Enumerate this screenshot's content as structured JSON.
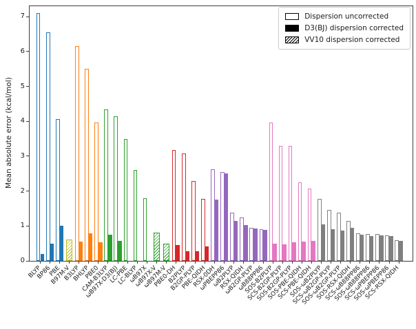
{
  "chart_data": {
    "type": "bar",
    "title": "",
    "xlabel": "",
    "ylabel": "Mean absolute error (kcal/mol)",
    "ylim": [
      0,
      7.3
    ],
    "yticks": [
      0,
      1,
      2,
      3,
      4,
      5,
      6,
      7
    ],
    "grid": false,
    "legend_position": "upper right",
    "legend": [
      {
        "label": "Dispersion uncorrected",
        "style": "open"
      },
      {
        "label": "D3(BJ) dispersion corrected",
        "style": "solid"
      },
      {
        "label": "VV10 dispersion corrected",
        "style": "hatched"
      }
    ],
    "series_note": "uncorrected = open bar, d3bj = solid bar, vv10 = hatched bar; values in kcal/mol",
    "functionals": [
      {
        "name": "BLYP",
        "color": "#1f77b4",
        "uncorrected": 7.1,
        "d3bj": 0.2,
        "vv10": null
      },
      {
        "name": "BP86",
        "color": "#1f77b4",
        "uncorrected": 6.55,
        "d3bj": 0.5,
        "vv10": null
      },
      {
        "name": "PBE",
        "color": "#1f77b4",
        "uncorrected": 4.07,
        "d3bj": 1.0,
        "vv10": null
      },
      {
        "name": "B97M-V",
        "color": "#bcbd22",
        "uncorrected": null,
        "d3bj": null,
        "vv10": 0.62
      },
      {
        "name": "B3LYP",
        "color": "#ff7f0e",
        "uncorrected": 6.15,
        "d3bj": 0.55,
        "vv10": null
      },
      {
        "name": "BHLYP",
        "color": "#ff7f0e",
        "uncorrected": 5.5,
        "d3bj": 0.78,
        "vv10": null
      },
      {
        "name": "PBE0",
        "color": "#ff7f0e",
        "uncorrected": 3.97,
        "d3bj": 0.53,
        "vv10": null
      },
      {
        "name": "CAM-B3LYP",
        "color": "#2ca02c",
        "uncorrected": 4.35,
        "d3bj": 0.75,
        "vv10": null
      },
      {
        "name": "ωB97X-D3(BJ)",
        "color": "#2ca02c",
        "uncorrected": 4.15,
        "d3bj": 0.57,
        "vv10": null
      },
      {
        "name": "LC-PBE",
        "color": "#2ca02c",
        "uncorrected": 3.5,
        "d3bj": null,
        "vv10": null
      },
      {
        "name": "LC-BLYP",
        "color": "#2ca02c",
        "uncorrected": 2.6,
        "d3bj": null,
        "vv10": null
      },
      {
        "name": "ωB97X",
        "color": "#2ca02c",
        "uncorrected": 1.8,
        "d3bj": null,
        "vv10": null
      },
      {
        "name": "ωB97X-V",
        "color": "#2ca02c",
        "uncorrected": null,
        "d3bj": null,
        "vv10": 0.8
      },
      {
        "name": "ωB97M-V",
        "color": "#2ca02c",
        "uncorrected": null,
        "d3bj": null,
        "vv10": 0.5
      },
      {
        "name": "PBE0-DH",
        "color": "#d62728",
        "uncorrected": 3.18,
        "d3bj": 0.45,
        "vv10": null
      },
      {
        "name": "B2PLYP",
        "color": "#d62728",
        "uncorrected": 3.08,
        "d3bj": 0.28,
        "vv10": null
      },
      {
        "name": "B2GP-PLYP",
        "color": "#d62728",
        "uncorrected": 2.28,
        "d3bj": 0.27,
        "vv10": null
      },
      {
        "name": "PBE-QIDH",
        "color": "#d62728",
        "uncorrected": 1.78,
        "d3bj": 0.42,
        "vv10": null
      },
      {
        "name": "RSX-0DH",
        "color": "#9467bd",
        "uncorrected": 2.62,
        "d3bj": 1.75,
        "vv10": null
      },
      {
        "name": "ωPBEPP86",
        "color": "#9467bd",
        "uncorrected": 2.55,
        "d3bj": 2.5,
        "vv10": null
      },
      {
        "name": "ωB2PLYP",
        "color": "#9467bd",
        "uncorrected": 1.39,
        "d3bj": 1.15,
        "vv10": null
      },
      {
        "name": "RSX-QIDH",
        "color": "#9467bd",
        "uncorrected": 1.25,
        "d3bj": 1.03,
        "vv10": null
      },
      {
        "name": "ωB2GP-PLYP",
        "color": "#9467bd",
        "uncorrected": 0.95,
        "d3bj": 0.93,
        "vv10": null
      },
      {
        "name": "ωB88PP86",
        "color": "#9467bd",
        "uncorrected": 0.9,
        "d3bj": 0.88,
        "vv10": null
      },
      {
        "name": "SOS-B2PLYP",
        "color": "#e377c2",
        "uncorrected": 3.97,
        "d3bj": 0.5,
        "vv10": null
      },
      {
        "name": "SCS-B2GP-PLYP",
        "color": "#e377c2",
        "uncorrected": 3.3,
        "d3bj": 0.48,
        "vv10": null
      },
      {
        "name": "SOS-B2GP-PLYP",
        "color": "#e377c2",
        "uncorrected": 3.3,
        "d3bj": 0.53,
        "vv10": null
      },
      {
        "name": "SOS-PBE-QIDH",
        "color": "#e377c2",
        "uncorrected": 2.25,
        "d3bj": 0.55,
        "vv10": null
      },
      {
        "name": "SCS-PBE-QIDH",
        "color": "#e377c2",
        "uncorrected": 2.08,
        "d3bj": 0.57,
        "vv10": null
      },
      {
        "name": "SOS-ωB2PLYP",
        "color": "#7f7f7f",
        "uncorrected": 1.78,
        "d3bj": 1.05,
        "vv10": null
      },
      {
        "name": "SCS-ωB2GP-PLYP",
        "color": "#7f7f7f",
        "uncorrected": 1.47,
        "d3bj": 0.9,
        "vv10": null
      },
      {
        "name": "SOS-ωB2GP-PLYP",
        "color": "#7f7f7f",
        "uncorrected": 1.38,
        "d3bj": 0.86,
        "vv10": null
      },
      {
        "name": "SOS-RSX-QIDH",
        "color": "#7f7f7f",
        "uncorrected": 1.15,
        "d3bj": 0.95,
        "vv10": null
      },
      {
        "name": "SCS-ωB88PP86",
        "color": "#7f7f7f",
        "uncorrected": 0.78,
        "d3bj": 0.75,
        "vv10": null
      },
      {
        "name": "SOS-ωB88PP86",
        "color": "#7f7f7f",
        "uncorrected": 0.77,
        "d3bj": 0.72,
        "vv10": null
      },
      {
        "name": "SCS-ωPBEPP86",
        "color": "#7f7f7f",
        "uncorrected": 0.76,
        "d3bj": 0.74,
        "vv10": null
      },
      {
        "name": "SOS-ωPBEPP86",
        "color": "#7f7f7f",
        "uncorrected": 0.74,
        "d3bj": 0.72,
        "vv10": null
      },
      {
        "name": "SCS-RSX-QIDH",
        "color": "#7f7f7f",
        "uncorrected": 0.6,
        "d3bj": 0.58,
        "vv10": null
      }
    ]
  }
}
